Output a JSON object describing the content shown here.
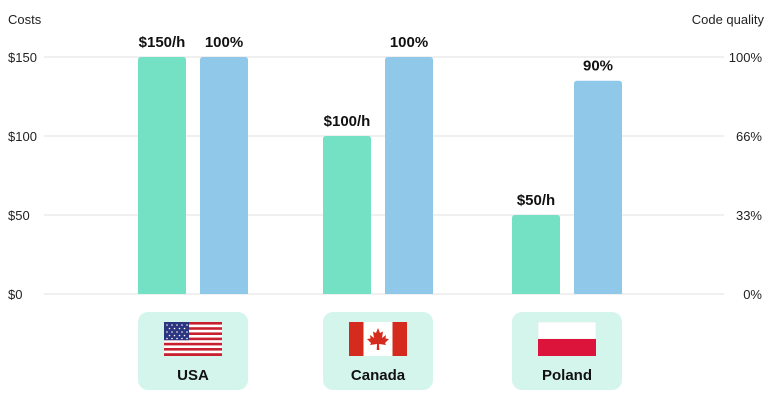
{
  "chart_data": {
    "type": "bar",
    "categories": [
      "USA",
      "Canada",
      "Poland"
    ],
    "left_axis": {
      "title": "Costs",
      "ticks": [
        "$0",
        "$50",
        "$100",
        "$150"
      ],
      "range": [
        0,
        150
      ]
    },
    "right_axis": {
      "title": "Code quality",
      "ticks": [
        "0%",
        "33%",
        "66%",
        "100%"
      ],
      "range": [
        0,
        100
      ]
    },
    "series": [
      {
        "key": "cost",
        "axis": "left",
        "color": "#74e1c4",
        "values": [
          150,
          100,
          50
        ],
        "labels": [
          "$150/h",
          "$100/h",
          "$50/h"
        ]
      },
      {
        "key": "quality",
        "axis": "right",
        "color": "#90c8ea",
        "values": [
          100,
          100,
          90
        ],
        "labels": [
          "100%",
          "100%",
          "90%"
        ]
      }
    ],
    "grid": true,
    "legend": "none"
  },
  "countries": [
    {
      "label": "USA",
      "flag_icon": "usa-flag-icon"
    },
    {
      "label": "Canada",
      "flag_icon": "canada-flag-icon"
    },
    {
      "label": "Poland",
      "flag_icon": "poland-flag-icon"
    }
  ],
  "colors": {
    "grid": "#e2e2e2",
    "card_bg": "#d4f5ec"
  }
}
